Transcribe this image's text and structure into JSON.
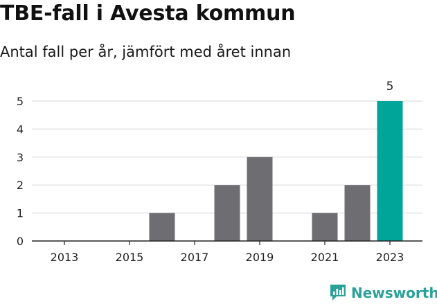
{
  "title": "TBE-fall i Avesta kommun",
  "subtitle": "Antal fall per år, jämfört med året innan",
  "brand": {
    "name": "Newsworthy",
    "icon": "newsworthy-logo-icon"
  },
  "colors": {
    "bar": "#6e6e72",
    "highlight": "#00a59a",
    "grid": "#dddddd",
    "axis": "#222222",
    "brand": "#2aa198"
  },
  "chart_data": {
    "type": "bar",
    "title": "TBE-fall i Avesta kommun",
    "subtitle": "Antal fall per år, jämfört med året innan",
    "xlabel": "",
    "ylabel": "",
    "categories": [
      "2013",
      "2014",
      "2015",
      "2016",
      "2017",
      "2018",
      "2019",
      "2020",
      "2021",
      "2022",
      "2023"
    ],
    "values": [
      0,
      0,
      0,
      1,
      0,
      2,
      3,
      0,
      1,
      2,
      5
    ],
    "highlight_category": "2023",
    "data_labels": [
      {
        "category": "2023",
        "text": "5"
      }
    ],
    "x_tick_labels": [
      "2013",
      "2015",
      "2017",
      "2019",
      "2021",
      "2023"
    ],
    "y_ticks": [
      0,
      1,
      2,
      3,
      4,
      5
    ],
    "ylim": [
      0,
      5
    ],
    "grid": "horizontal",
    "legend": "none"
  }
}
